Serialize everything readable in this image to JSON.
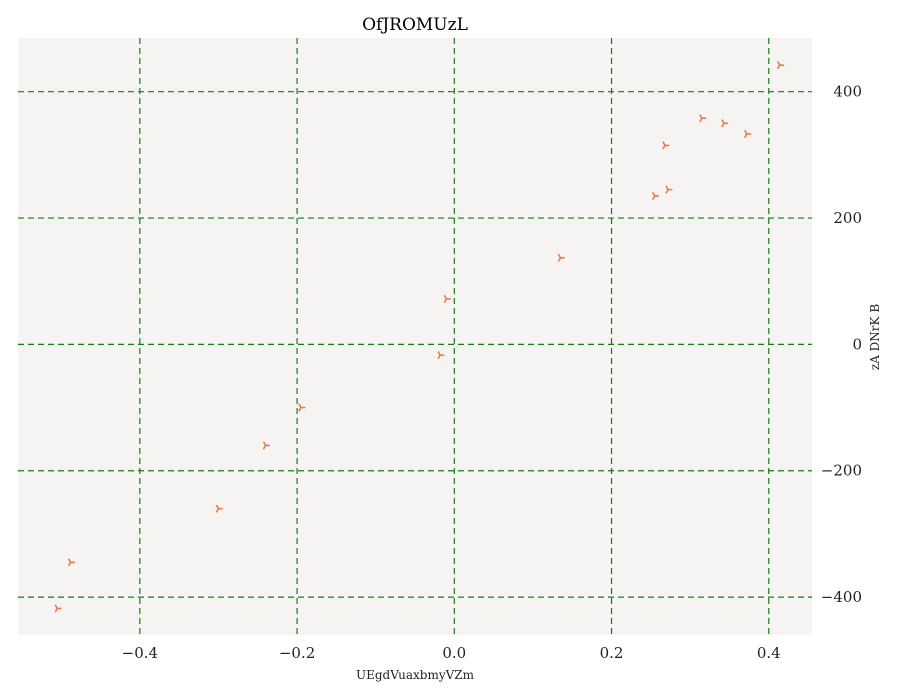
{
  "chart_data": {
    "type": "scatter",
    "title": "OfJROMUzL",
    "xlabel": "UEgdVuaxbmyVZm",
    "ylabel": "zA DNrK B",
    "xlim": [
      -0.555,
      0.455
    ],
    "ylim": [
      -460,
      485
    ],
    "x_ticks": [
      -0.4,
      -0.2,
      0.0,
      0.2,
      0.4
    ],
    "x_tick_labels": [
      "−0.4",
      "−0.2",
      "0.0",
      "0.2",
      "0.4"
    ],
    "y_ticks": [
      -400,
      -200,
      0,
      200,
      400
    ],
    "y_tick_labels": [
      "−400",
      "−200",
      "0",
      "200",
      "400"
    ],
    "y_axis_side": "right",
    "grid": true,
    "grid_style": "dashed",
    "colors": {
      "background": "#f5f4f2",
      "grid": "#1a7a1a",
      "marker": "#e8794a"
    },
    "marker": "tri_right",
    "series": [
      {
        "x": [
          -0.505,
          -0.488,
          -0.3,
          -0.24,
          -0.195,
          -0.018,
          -0.01,
          0.135,
          0.255,
          0.268,
          0.272,
          0.315,
          0.343,
          0.372,
          0.414
        ],
        "y": [
          -418,
          -345,
          -260,
          -160,
          -100,
          -17,
          72,
          137,
          235,
          315,
          245,
          358,
          350,
          333,
          442
        ]
      }
    ]
  }
}
